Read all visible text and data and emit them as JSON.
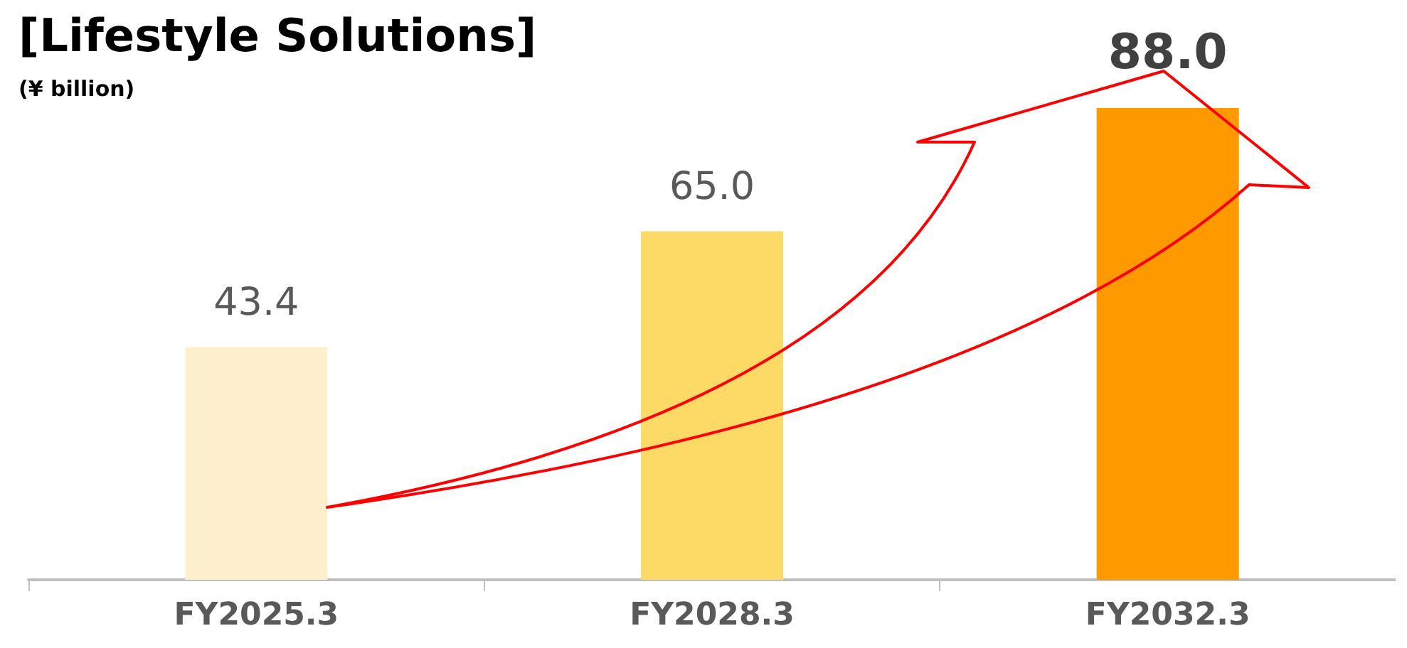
{
  "chart_data": {
    "type": "bar",
    "title": "[Lifestyle Solutions]",
    "subtitle": "(¥ billion)",
    "categories": [
      "FY2025.3",
      "FY2028.3",
      "FY2032.3"
    ],
    "values": [
      43.4,
      65.0,
      88.0
    ],
    "colors": [
      "#fef0cc",
      "#fdd966",
      "#fe9900"
    ],
    "value_labels": [
      "43.4",
      "65.0",
      "88.0"
    ]
  }
}
